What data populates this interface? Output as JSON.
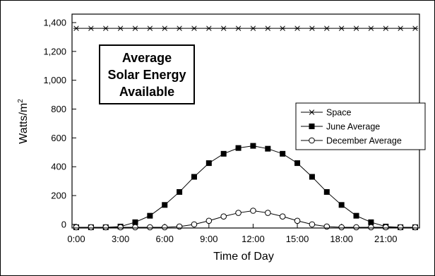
{
  "chart_data": {
    "type": "line",
    "title_lines": [
      "Average",
      "Solar Energy",
      "Available"
    ],
    "xlabel": "Time of Day",
    "ylabel": "Watts/m",
    "ylabel_sup": "2",
    "x_ticks": [
      0,
      3,
      6,
      9,
      12,
      15,
      18,
      21
    ],
    "x_tick_labels": [
      "0:00",
      "3:00",
      "6:00",
      "9:00",
      "12:00",
      "15:00",
      "18:00",
      "21:00"
    ],
    "xlim": [
      0,
      23
    ],
    "y_ticks": [
      0,
      200,
      400,
      600,
      800,
      1000,
      1200,
      1400
    ],
    "y_tick_labels": [
      "0",
      "200",
      "400",
      "600",
      "800",
      "1,000",
      "1,200",
      "1,400"
    ],
    "ylim": [
      -25,
      1400
    ],
    "x": [
      0,
      1,
      2,
      3,
      4,
      5,
      6,
      7,
      8,
      9,
      10,
      11,
      12,
      13,
      14,
      15,
      16,
      17,
      18,
      19,
      20,
      21,
      22,
      23
    ],
    "series": [
      {
        "name": "Space",
        "marker": "star",
        "values": [
          1360,
          1360,
          1360,
          1360,
          1360,
          1360,
          1360,
          1360,
          1360,
          1360,
          1360,
          1360,
          1360,
          1360,
          1360,
          1360,
          1360,
          1360,
          1360,
          1360,
          1360,
          1360,
          1360,
          1360
        ]
      },
      {
        "name": "June Average",
        "marker": "filled-square",
        "values": [
          -20,
          -20,
          -20,
          -15,
          15,
          60,
          135,
          225,
          330,
          425,
          490,
          530,
          545,
          525,
          490,
          425,
          330,
          225,
          135,
          60,
          15,
          -15,
          -20,
          -20
        ]
      },
      {
        "name": "December Average",
        "marker": "open-circle",
        "values": [
          -20,
          -20,
          -20,
          -20,
          -20,
          -20,
          -20,
          -15,
          0,
          25,
          55,
          80,
          95,
          80,
          55,
          25,
          0,
          -15,
          -20,
          -20,
          -20,
          -20,
          -20,
          -20
        ]
      }
    ],
    "legend_position": "right",
    "grid": false
  }
}
